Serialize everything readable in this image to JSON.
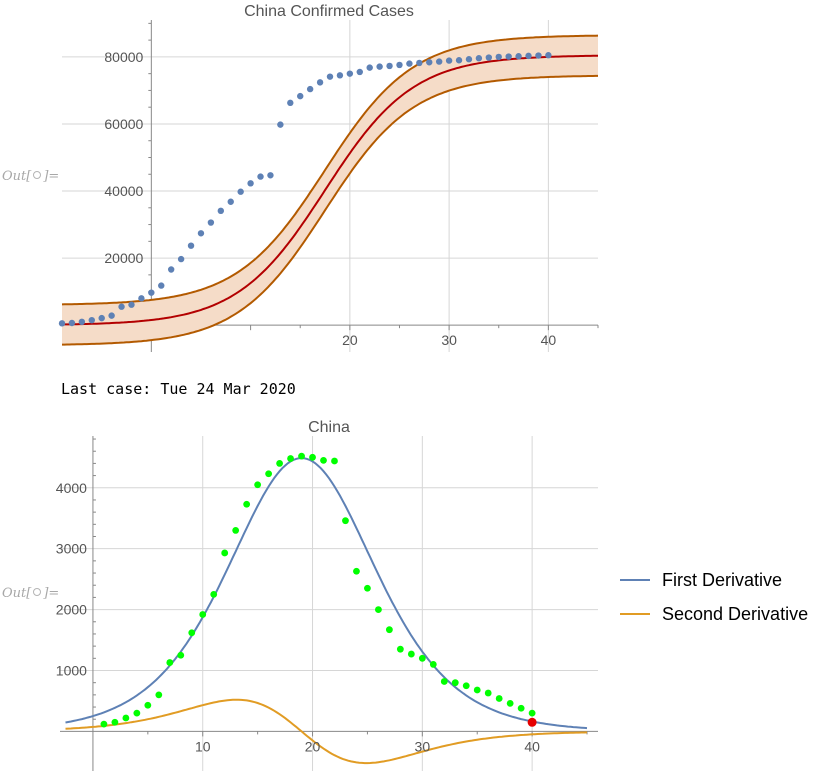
{
  "cell1": {
    "out_label": "Out[",
    "out_label_end": "]=",
    "chart": {
      "type": "line",
      "title": "China Confirmed Cases",
      "xlim": [
        -9,
        45
      ],
      "ylim": [
        -8000,
        91000
      ],
      "xticks": [
        20,
        30,
        40
      ],
      "yticks": [
        20000,
        40000,
        60000,
        80000
      ],
      "ytick_labels": [
        "20000",
        "40000",
        "60000",
        "80000"
      ],
      "grid": true,
      "logistic_fit": {
        "L": 80500,
        "k": 0.225,
        "x0": 17.5,
        "band": 6000
      },
      "colors": {
        "fit": "#b30000",
        "band_edge": "#b35a00",
        "band_fill": "#f5dcc8",
        "points": "#5e81b5"
      },
      "series": [
        {
          "x": [
            -9,
            -8,
            -7,
            -6,
            -5,
            -4,
            -3,
            -2,
            -1,
            0,
            1,
            2,
            3,
            4,
            5,
            6,
            7,
            8,
            9,
            10,
            11,
            12,
            13,
            14,
            15,
            16,
            17,
            18,
            19,
            20,
            21,
            22,
            23,
            24,
            25,
            26,
            27,
            28,
            29,
            30,
            31,
            32,
            33,
            34,
            35,
            36,
            37,
            38,
            39,
            40
          ],
          "y": [
            550,
            650,
            1000,
            1500,
            2100,
            2850,
            5500,
            6100,
            8000,
            9700,
            11800,
            16600,
            19700,
            23700,
            27400,
            30600,
            34100,
            36800,
            39800,
            42300,
            44300,
            44700,
            59800,
            66300,
            68300,
            70400,
            72400,
            74100,
            74500,
            75000,
            75500,
            76800,
            77100,
            77300,
            77600,
            78000,
            78200,
            78400,
            78600,
            78900,
            79000,
            79300,
            79600,
            79800,
            80000,
            80100,
            80200,
            80300,
            80400,
            80500
          ]
        }
      ]
    }
  },
  "text_line": "Last case: Tue 24 Mar 2020",
  "cell2": {
    "out_label": "Out[",
    "out_label_end": "]=",
    "chart": {
      "type": "line",
      "title": "China",
      "xlim": [
        -3,
        46
      ],
      "ylim": [
        -650,
        4850
      ],
      "xticks": [
        10,
        20,
        30,
        40
      ],
      "yticks": [
        1000,
        2000,
        3000,
        4000
      ],
      "ytick_labels": [
        "1000",
        "2000",
        "3000",
        "4000"
      ],
      "grid": true,
      "legend_position": "right",
      "series": [
        {
          "name": "First Derivative",
          "color": "#5e81b5"
        },
        {
          "name": "Second Derivative",
          "color": "#e19c24"
        }
      ],
      "derivative_model": {
        "L": 80500,
        "k": 0.223,
        "x0": 19
      },
      "points": {
        "color": "#00ff00",
        "x": [
          1,
          2,
          3,
          4,
          5,
          6,
          7,
          8,
          9,
          10,
          11,
          12,
          13,
          14,
          15,
          16,
          17,
          18,
          19,
          20,
          21,
          22,
          23,
          24,
          25,
          26,
          27,
          28,
          29,
          30,
          31,
          32,
          33,
          34,
          35,
          36,
          37,
          38,
          39,
          40
        ],
        "y": [
          120,
          150,
          220,
          300,
          430,
          600,
          1130,
          1250,
          1620,
          1920,
          2250,
          2930,
          3300,
          3730,
          4050,
          4230,
          4400,
          4480,
          4520,
          4500,
          4450,
          4440,
          3460,
          2630,
          2350,
          2000,
          1670,
          1350,
          1270,
          1200,
          1100,
          820,
          800,
          750,
          680,
          630,
          540,
          460,
          380,
          300
        ]
      },
      "highlight_point": {
        "x": 40,
        "y": 150,
        "color": "#e60000"
      }
    }
  }
}
